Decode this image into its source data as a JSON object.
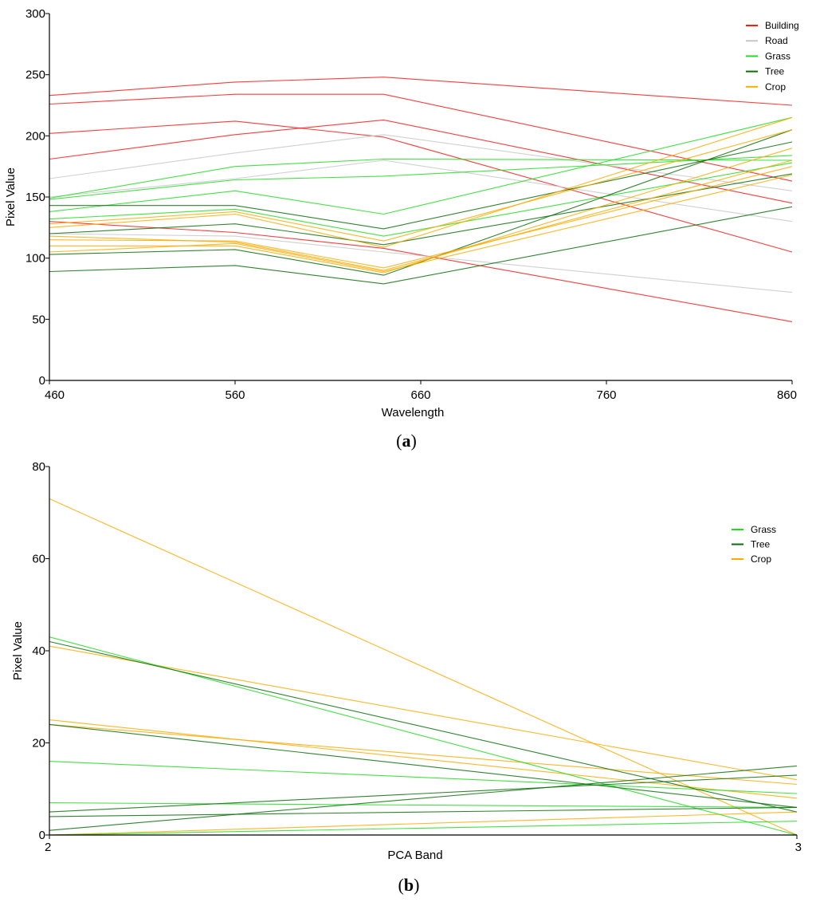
{
  "chart_data": [
    {
      "type": "line",
      "caption_letter": "a",
      "xlabel": "Wavelength",
      "ylabel": "Pixel Value",
      "xlim": [
        460,
        860
      ],
      "ylim": [
        0,
        300
      ],
      "x": [
        460,
        560,
        640,
        860
      ],
      "x_ticks": [
        460,
        560,
        660,
        760,
        860
      ],
      "y_ticks": [
        0,
        50,
        100,
        150,
        200,
        250,
        300
      ],
      "legend": [
        {
          "name": "Building",
          "color": "#ff1a1a"
        },
        {
          "name": "Road",
          "color": "#c8c8c8"
        },
        {
          "name": "Grass",
          "color": "#22dd22"
        },
        {
          "name": "Tree",
          "color": "#0a6e0a"
        },
        {
          "name": "Crop",
          "color": "#ffaa00"
        }
      ],
      "series": [
        {
          "name": "Building",
          "values": [
            233,
            244,
            248,
            225
          ]
        },
        {
          "name": "Building",
          "values": [
            226,
            234,
            234,
            163
          ]
        },
        {
          "name": "Building",
          "values": [
            202,
            212,
            199,
            105
          ]
        },
        {
          "name": "Building",
          "values": [
            181,
            201,
            213,
            145
          ]
        },
        {
          "name": "Building",
          "values": [
            130,
            121,
            108,
            48
          ]
        },
        {
          "name": "Road",
          "values": [
            165,
            186,
            201,
            155
          ]
        },
        {
          "name": "Road",
          "values": [
            150,
            165,
            180,
            130
          ]
        },
        {
          "name": "Road",
          "values": [
            120,
            118,
            105,
            72
          ]
        },
        {
          "name": "Grass",
          "values": [
            149,
            175,
            181,
            180
          ]
        },
        {
          "name": "Grass",
          "values": [
            148,
            164,
            167,
            184
          ]
        },
        {
          "name": "Grass",
          "values": [
            138,
            155,
            136,
            215
          ]
        },
        {
          "name": "Grass",
          "values": [
            132,
            140,
            118,
            178
          ]
        },
        {
          "name": "Tree",
          "values": [
            143,
            143,
            124,
            195
          ]
        },
        {
          "name": "Tree",
          "values": [
            120,
            128,
            111,
            169
          ]
        },
        {
          "name": "Tree",
          "values": [
            103,
            107,
            86,
            205
          ]
        },
        {
          "name": "Tree",
          "values": [
            89,
            94,
            79,
            142
          ]
        },
        {
          "name": "Crop",
          "values": [
            128,
            138,
            114,
            205
          ]
        },
        {
          "name": "Crop",
          "values": [
            125,
            136,
            109,
            215
          ]
        },
        {
          "name": "Crop",
          "values": [
            118,
            113,
            90,
            180
          ]
        },
        {
          "name": "Crop",
          "values": [
            115,
            114,
            92,
            175
          ]
        },
        {
          "name": "Crop",
          "values": [
            110,
            110,
            88,
            190
          ]
        },
        {
          "name": "Crop",
          "values": [
            105,
            112,
            89,
            168
          ]
        }
      ]
    },
    {
      "type": "line",
      "caption_letter": "b",
      "xlabel": "PCA Band",
      "ylabel": "Pixel Value",
      "xlim": [
        2,
        3
      ],
      "ylim": [
        0,
        80
      ],
      "x": [
        2,
        3
      ],
      "x_ticks": [
        2,
        3
      ],
      "y_ticks": [
        0,
        20,
        40,
        60,
        80
      ],
      "legend": [
        {
          "name": "Grass",
          "color": "#22dd22"
        },
        {
          "name": "Tree",
          "color": "#0a6e0a"
        },
        {
          "name": "Crop",
          "color": "#ffaa00"
        }
      ],
      "series": [
        {
          "name": "Crop",
          "values": [
            73,
            0
          ]
        },
        {
          "name": "Crop",
          "values": [
            41,
            12
          ]
        },
        {
          "name": "Crop",
          "values": [
            25,
            8
          ]
        },
        {
          "name": "Crop",
          "values": [
            24,
            11
          ]
        },
        {
          "name": "Crop",
          "values": [
            0,
            5
          ]
        },
        {
          "name": "Grass",
          "values": [
            43,
            0
          ]
        },
        {
          "name": "Grass",
          "values": [
            16,
            9
          ]
        },
        {
          "name": "Grass",
          "values": [
            7,
            6
          ]
        },
        {
          "name": "Grass",
          "values": [
            0,
            3
          ]
        },
        {
          "name": "Tree",
          "values": [
            42,
            5
          ]
        },
        {
          "name": "Tree",
          "values": [
            24,
            6
          ]
        },
        {
          "name": "Tree",
          "values": [
            5,
            13
          ]
        },
        {
          "name": "Tree",
          "values": [
            4,
            6
          ]
        },
        {
          "name": "Tree",
          "values": [
            1,
            15
          ]
        }
      ]
    }
  ]
}
